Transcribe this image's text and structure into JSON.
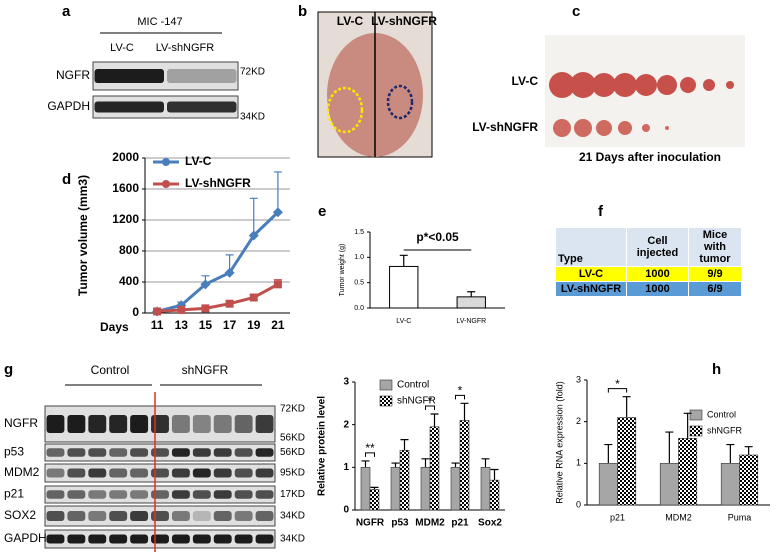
{
  "panels": [
    "a",
    "b",
    "c",
    "d",
    "e",
    "f",
    "g",
    "h"
  ],
  "a": {
    "cell_line": "MIC -147",
    "lanes": [
      "LV-C",
      "LV-shNGFR"
    ],
    "rows": [
      "NGFR",
      "GAPDH"
    ],
    "markers": [
      "72KD",
      "34KD"
    ]
  },
  "b": {
    "labels": [
      "LV-C",
      "LV-shNGFR"
    ]
  },
  "c": {
    "rows": [
      "LV-C",
      "LV-shNGFR"
    ],
    "caption": "21 Days after inoculation"
  },
  "f": {
    "table": {
      "header": [
        "Type",
        "Cell injected",
        "Mice with tumor"
      ],
      "rows": [
        [
          "LV-C",
          "1000",
          "9/9"
        ],
        [
          "LV-shNGFR",
          "1000",
          "6/9"
        ]
      ],
      "row_colors": [
        "#ffff00",
        "#5b9bd5"
      ]
    }
  },
  "g_blot": {
    "groups": [
      "Control",
      "shNGFR"
    ],
    "rows": [
      "NGFR",
      "p53",
      "MDM2",
      "p21",
      "SOX2",
      "GAPDH"
    ],
    "markers": [
      [
        "72KD",
        "56KD"
      ],
      [
        "56KD"
      ],
      [
        "95KD"
      ],
      [
        "17KD"
      ],
      [
        "34KD"
      ],
      [
        "34KD"
      ]
    ]
  },
  "chart_data": [
    {
      "type": "line",
      "y_label": "Tumor volume (mm3)",
      "x_label": "Days",
      "categories": [
        "11",
        "13",
        "15",
        "17",
        "19",
        "21"
      ],
      "series": [
        {
          "name": "LV-C",
          "color": "#4a7ebb",
          "marker": "diamond",
          "values": [
            20,
            100,
            370,
            520,
            1000,
            1300
          ],
          "errors": [
            10,
            40,
            110,
            230,
            480,
            520
          ]
        },
        {
          "name": "LV-shNGFR",
          "color": "#c0504d",
          "marker": "square",
          "values": [
            20,
            40,
            60,
            120,
            200,
            370
          ],
          "errors": [
            10,
            10,
            20,
            30,
            40,
            60
          ]
        }
      ],
      "ylim": [
        0,
        2000
      ],
      "yticks": [
        0,
        400,
        800,
        1200,
        1600,
        2000
      ],
      "grid": true,
      "legend": "top-left"
    },
    {
      "type": "bar",
      "y_label": "Tumor weight (g)",
      "categories": [
        "LV-C",
        "LV-NGFR"
      ],
      "values": [
        0.82,
        0.22
      ],
      "errors": [
        0.22,
        0.1
      ],
      "colors": [
        "#ffffff",
        "#d9d9d9"
      ],
      "annotation": "p*<0.05",
      "ylim": [
        0,
        1.5
      ],
      "yticks": [
        {
          "value": 0,
          "label": "0.0"
        },
        0.5,
        {
          "value": 1,
          "label": "1.0"
        },
        1.5
      ]
    },
    {
      "type": "bar",
      "y_label": "Relative protein level",
      "categories": [
        "NGFR",
        "p53",
        "MDM2",
        "p21",
        "Sox2"
      ],
      "series": [
        {
          "name": "Control",
          "color": "#a6a6a6",
          "values": [
            1.0,
            1.0,
            1.0,
            1.0,
            1.0
          ],
          "errors": [
            0.15,
            0.1,
            0.2,
            0.1,
            0.2
          ]
        },
        {
          "name": "shNGFR",
          "color": "#000000",
          "pattern": "checker",
          "values": [
            0.48,
            1.4,
            1.95,
            2.1,
            0.7
          ],
          "errors": [
            0.05,
            0.25,
            0.3,
            0.4,
            0.25
          ]
        }
      ],
      "significance": [
        "**",
        null,
        "*",
        "*",
        null
      ],
      "ylim": [
        0,
        3
      ],
      "yticks": [
        0,
        1,
        2,
        3
      ],
      "legend": "top-left"
    },
    {
      "type": "bar",
      "y_label": "Relative RNA expression  (fold)",
      "categories": [
        "p21",
        "MDM2",
        "Puma"
      ],
      "series": [
        {
          "name": "Control",
          "color": "#a6a6a6",
          "values": [
            1.0,
            1.0,
            1.0
          ],
          "errors": [
            0.45,
            0.75,
            0.45
          ]
        },
        {
          "name": "shNGFR",
          "color": "#000000",
          "pattern": "checker",
          "values": [
            2.1,
            1.6,
            1.2
          ],
          "errors": [
            0.5,
            0.6,
            0.2
          ]
        }
      ],
      "significance": [
        "*",
        null,
        null
      ],
      "ylim": [
        0,
        3
      ],
      "yticks": [
        0,
        1,
        2,
        3
      ],
      "legend": "top-right"
    }
  ]
}
